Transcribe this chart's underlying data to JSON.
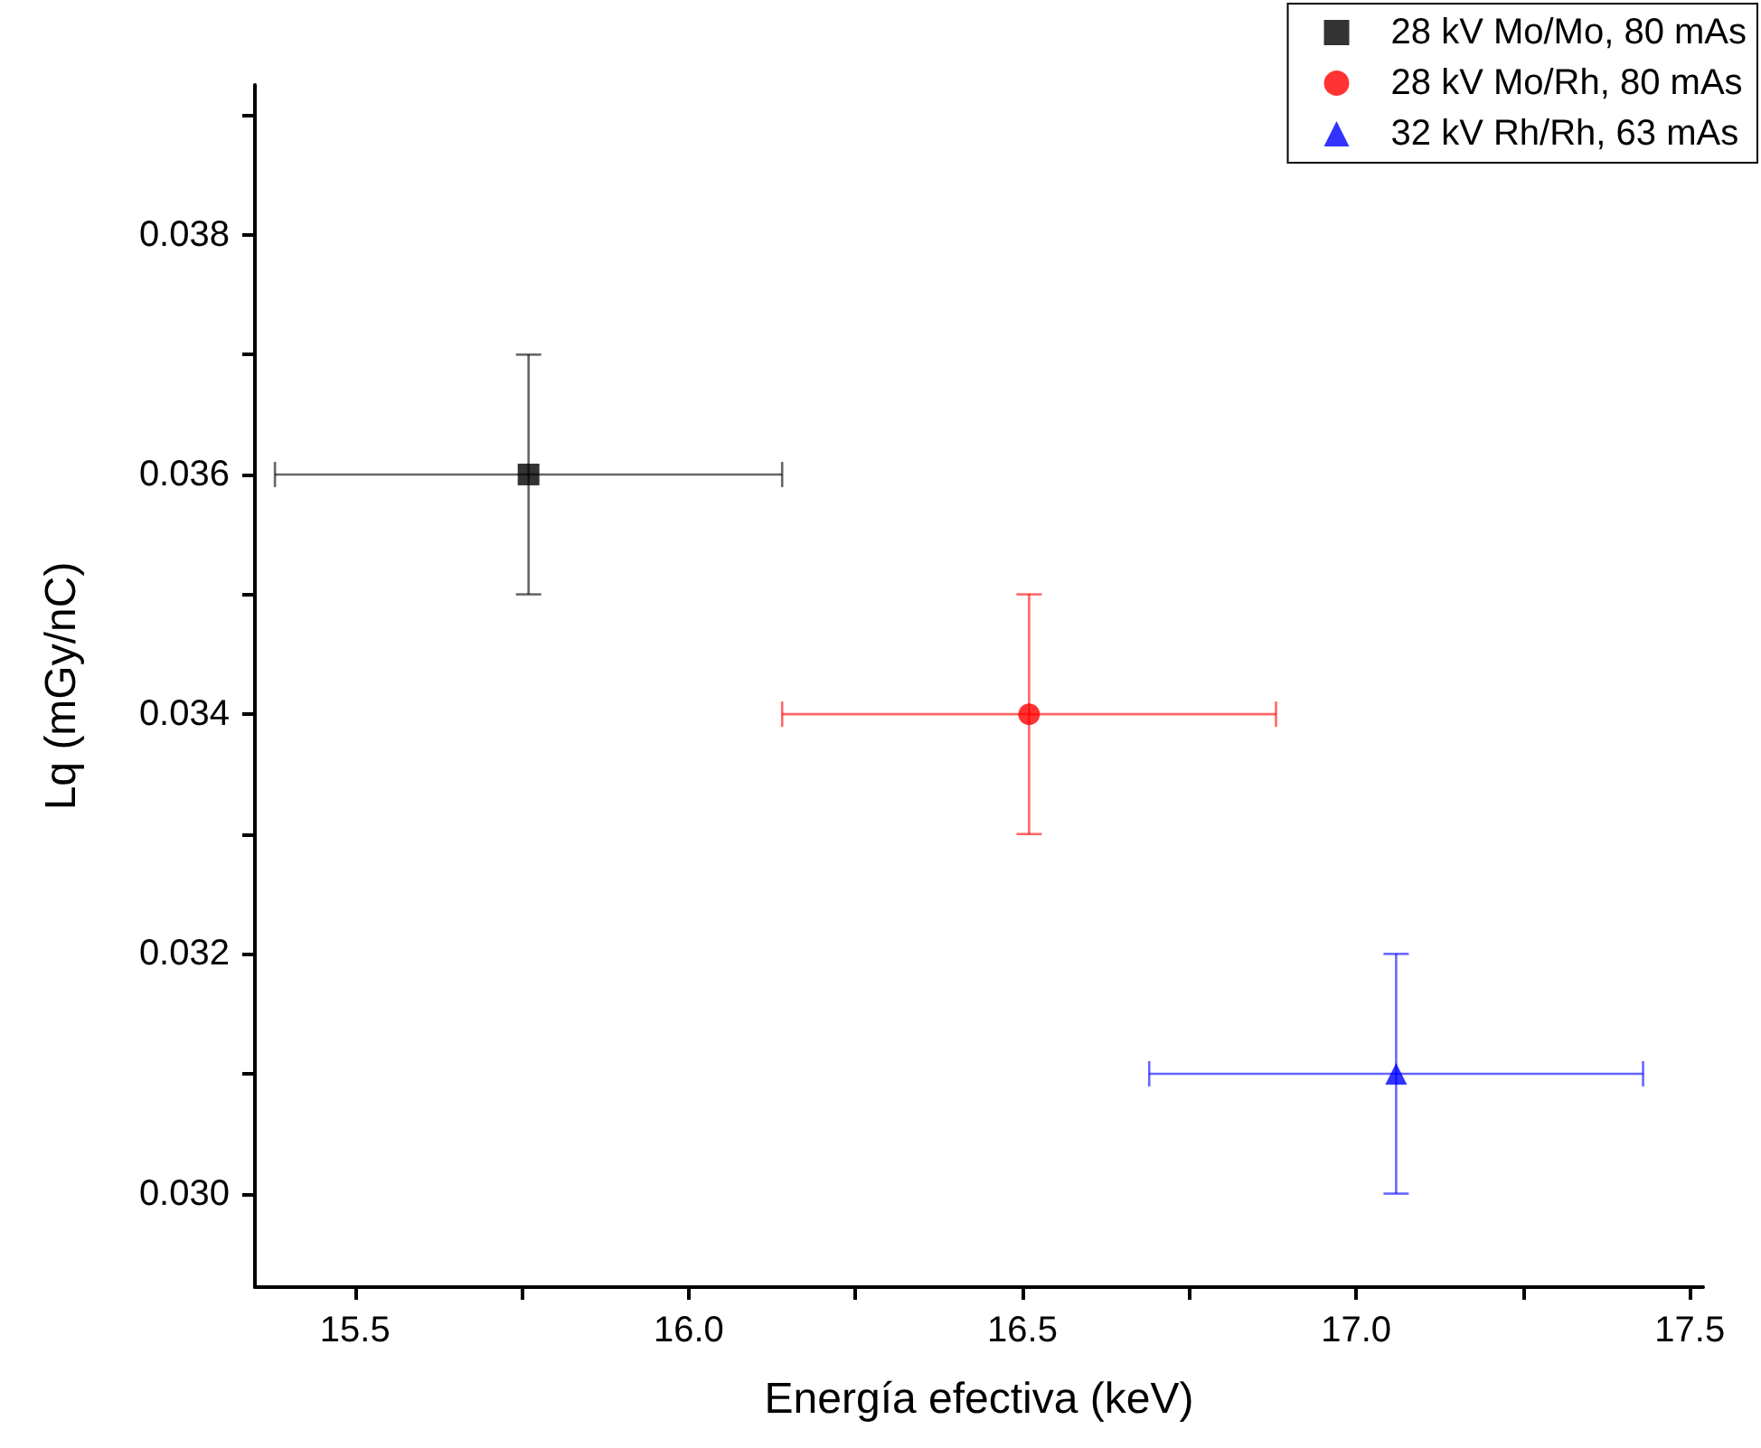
{
  "chart_data": {
    "type": "scatter",
    "xlabel": "Energía efectiva (keV)",
    "ylabel": "Lq (mGy/nC)",
    "xlim": [
      15.35,
      17.52
    ],
    "ylim": [
      0.02922,
      0.03925
    ],
    "xticks": [
      {
        "value": 15.5,
        "label": "15.5"
      },
      {
        "value": 15.75,
        "label": null
      },
      {
        "value": 16.0,
        "label": "16.0"
      },
      {
        "value": 16.25,
        "label": null
      },
      {
        "value": 16.5,
        "label": "16.5"
      },
      {
        "value": 16.75,
        "label": null
      },
      {
        "value": 17.0,
        "label": "17.0"
      },
      {
        "value": 17.25,
        "label": null
      },
      {
        "value": 17.5,
        "label": "17.5"
      }
    ],
    "yticks": [
      {
        "value": 0.03,
        "label": "0.030"
      },
      {
        "value": 0.031,
        "label": null
      },
      {
        "value": 0.032,
        "label": "0.032"
      },
      {
        "value": 0.033,
        "label": null
      },
      {
        "value": 0.034,
        "label": "0.034"
      },
      {
        "value": 0.035,
        "label": null
      },
      {
        "value": 0.036,
        "label": "0.036"
      },
      {
        "value": 0.037,
        "label": null
      },
      {
        "value": 0.038,
        "label": "0.038"
      },
      {
        "value": 0.039,
        "label": null
      }
    ],
    "grid": false,
    "legend": "top right",
    "series": [
      {
        "name": "28 kV Mo/Mo, 80 mAs",
        "color": "#000000",
        "marker": "square",
        "x": [
          15.76
        ],
        "values": [
          0.036
        ],
        "errors": [
          0.001
        ],
        "xerrors": [
          0.38
        ]
      },
      {
        "name": "28 kV Mo/Rh, 80 mAs",
        "color": "#ff0000",
        "marker": "circle",
        "x": [
          16.51
        ],
        "values": [
          0.034
        ],
        "errors": [
          0.001
        ],
        "xerrors": [
          0.37
        ]
      },
      {
        "name": "32 kV Rh/Rh, 63 mAs",
        "color": "#0000ff",
        "marker": "triangle",
        "x": [
          17.06
        ],
        "values": [
          0.031
        ],
        "errors": [
          0.001
        ],
        "xerrors": [
          0.37
        ]
      }
    ]
  }
}
